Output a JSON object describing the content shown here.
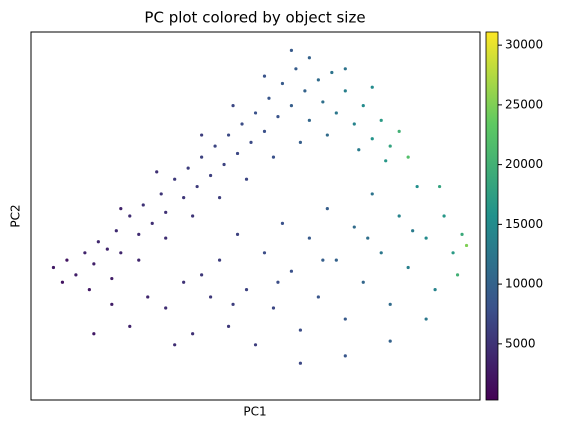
{
  "chart_data": {
    "type": "scatter",
    "title": "PC plot colored by object size",
    "x_label": "PC1",
    "y_label": "PC2",
    "xlim": [
      0,
      100
    ],
    "ylim": [
      0,
      100
    ],
    "x": [
      5,
      8,
      10,
      7,
      12,
      14,
      15,
      17,
      19,
      20,
      22,
      24,
      25,
      27,
      29,
      30,
      32,
      34,
      35,
      37,
      38,
      40,
      41,
      43,
      44,
      46,
      47,
      49,
      50,
      52,
      53,
      55,
      56,
      58,
      59,
      61,
      62,
      64,
      65,
      67,
      68,
      70,
      72,
      74,
      76,
      78,
      80,
      82,
      79,
      73,
      66,
      60,
      54,
      48,
      42,
      36,
      30,
      24,
      18,
      62,
      70,
      58,
      52,
      45,
      38,
      28,
      20,
      13,
      84,
      76,
      30,
      34,
      36,
      40,
      42,
      44,
      46,
      48,
      50,
      52,
      54,
      56,
      58,
      60,
      62,
      64,
      66,
      68,
      70,
      72,
      74,
      76,
      78,
      80,
      82,
      84,
      86,
      88,
      90,
      92,
      94,
      96,
      91,
      85,
      75,
      65,
      55,
      45,
      38,
      32,
      26,
      22,
      18,
      14,
      60,
      70,
      80,
      88,
      95,
      97
    ],
    "y": [
      36,
      38,
      34,
      32,
      40,
      37,
      43,
      41,
      46,
      40,
      50,
      45,
      53,
      48,
      56,
      51,
      60,
      55,
      63,
      58,
      66,
      61,
      69,
      64,
      72,
      67,
      75,
      70,
      78,
      73,
      82,
      77,
      86,
      80,
      90,
      84,
      93,
      87,
      81,
      89,
      78,
      84,
      75,
      80,
      71,
      76,
      69,
      73,
      65,
      68,
      72,
      70,
      66,
      60,
      55,
      50,
      44,
      38,
      33,
      76,
      90,
      95,
      88,
      80,
      72,
      62,
      52,
      30,
      66,
      85,
      25,
      32,
      18,
      28,
      38,
      20,
      45,
      30,
      15,
      40,
      25,
      48,
      35,
      19,
      44,
      28,
      52,
      38,
      22,
      47,
      32,
      56,
      40,
      26,
      50,
      36,
      58,
      44,
      30,
      50,
      40,
      45,
      58,
      46,
      44,
      38,
      32,
      26,
      34,
      15,
      28,
      20,
      26,
      18,
      10,
      12,
      16,
      22,
      34,
      42
    ],
    "color_values": [
      2500,
      2200,
      3000,
      2000,
      3500,
      3200,
      4000,
      3600,
      4200,
      3800,
      4500,
      4300,
      5000,
      4600,
      5200,
      4800,
      5600,
      5300,
      6000,
      5800,
      6500,
      6200,
      6800,
      6600,
      7200,
      7000,
      7500,
      7300,
      8000,
      7800,
      8500,
      8300,
      9000,
      9500,
      9200,
      10000,
      9800,
      11000,
      11500,
      12000,
      12500,
      13500,
      14000,
      15000,
      16000,
      17000,
      18000,
      20000,
      16500,
      13000,
      11000,
      9500,
      8000,
      6800,
      6000,
      5200,
      4500,
      3800,
      3000,
      10500,
      12000,
      9000,
      8200,
      7000,
      6000,
      4800,
      3500,
      2500,
      22000,
      15000,
      4500,
      5000,
      4800,
      5500,
      6000,
      5500,
      6500,
      6500,
      6000,
      7500,
      7000,
      8000,
      8000,
      7500,
      9000,
      8500,
      9500,
      10000,
      9000,
      11000,
      10500,
      12000,
      12500,
      11000,
      14000,
      13500,
      15500,
      15000,
      14000,
      16500,
      17000,
      19000,
      18000,
      13000,
      11500,
      9500,
      7500,
      6000,
      5500,
      4500,
      3800,
      3500,
      3000,
      2500,
      7000,
      8500,
      10000,
      12500,
      20000,
      25000
    ],
    "colorbar": {
      "lim": [
        300,
        31100
      ],
      "ticks": [
        5000,
        10000,
        15000,
        20000,
        25000,
        30000
      ],
      "colormap": [
        "#440154",
        "#3b528b",
        "#21918c",
        "#5ec962",
        "#fde725"
      ]
    }
  }
}
